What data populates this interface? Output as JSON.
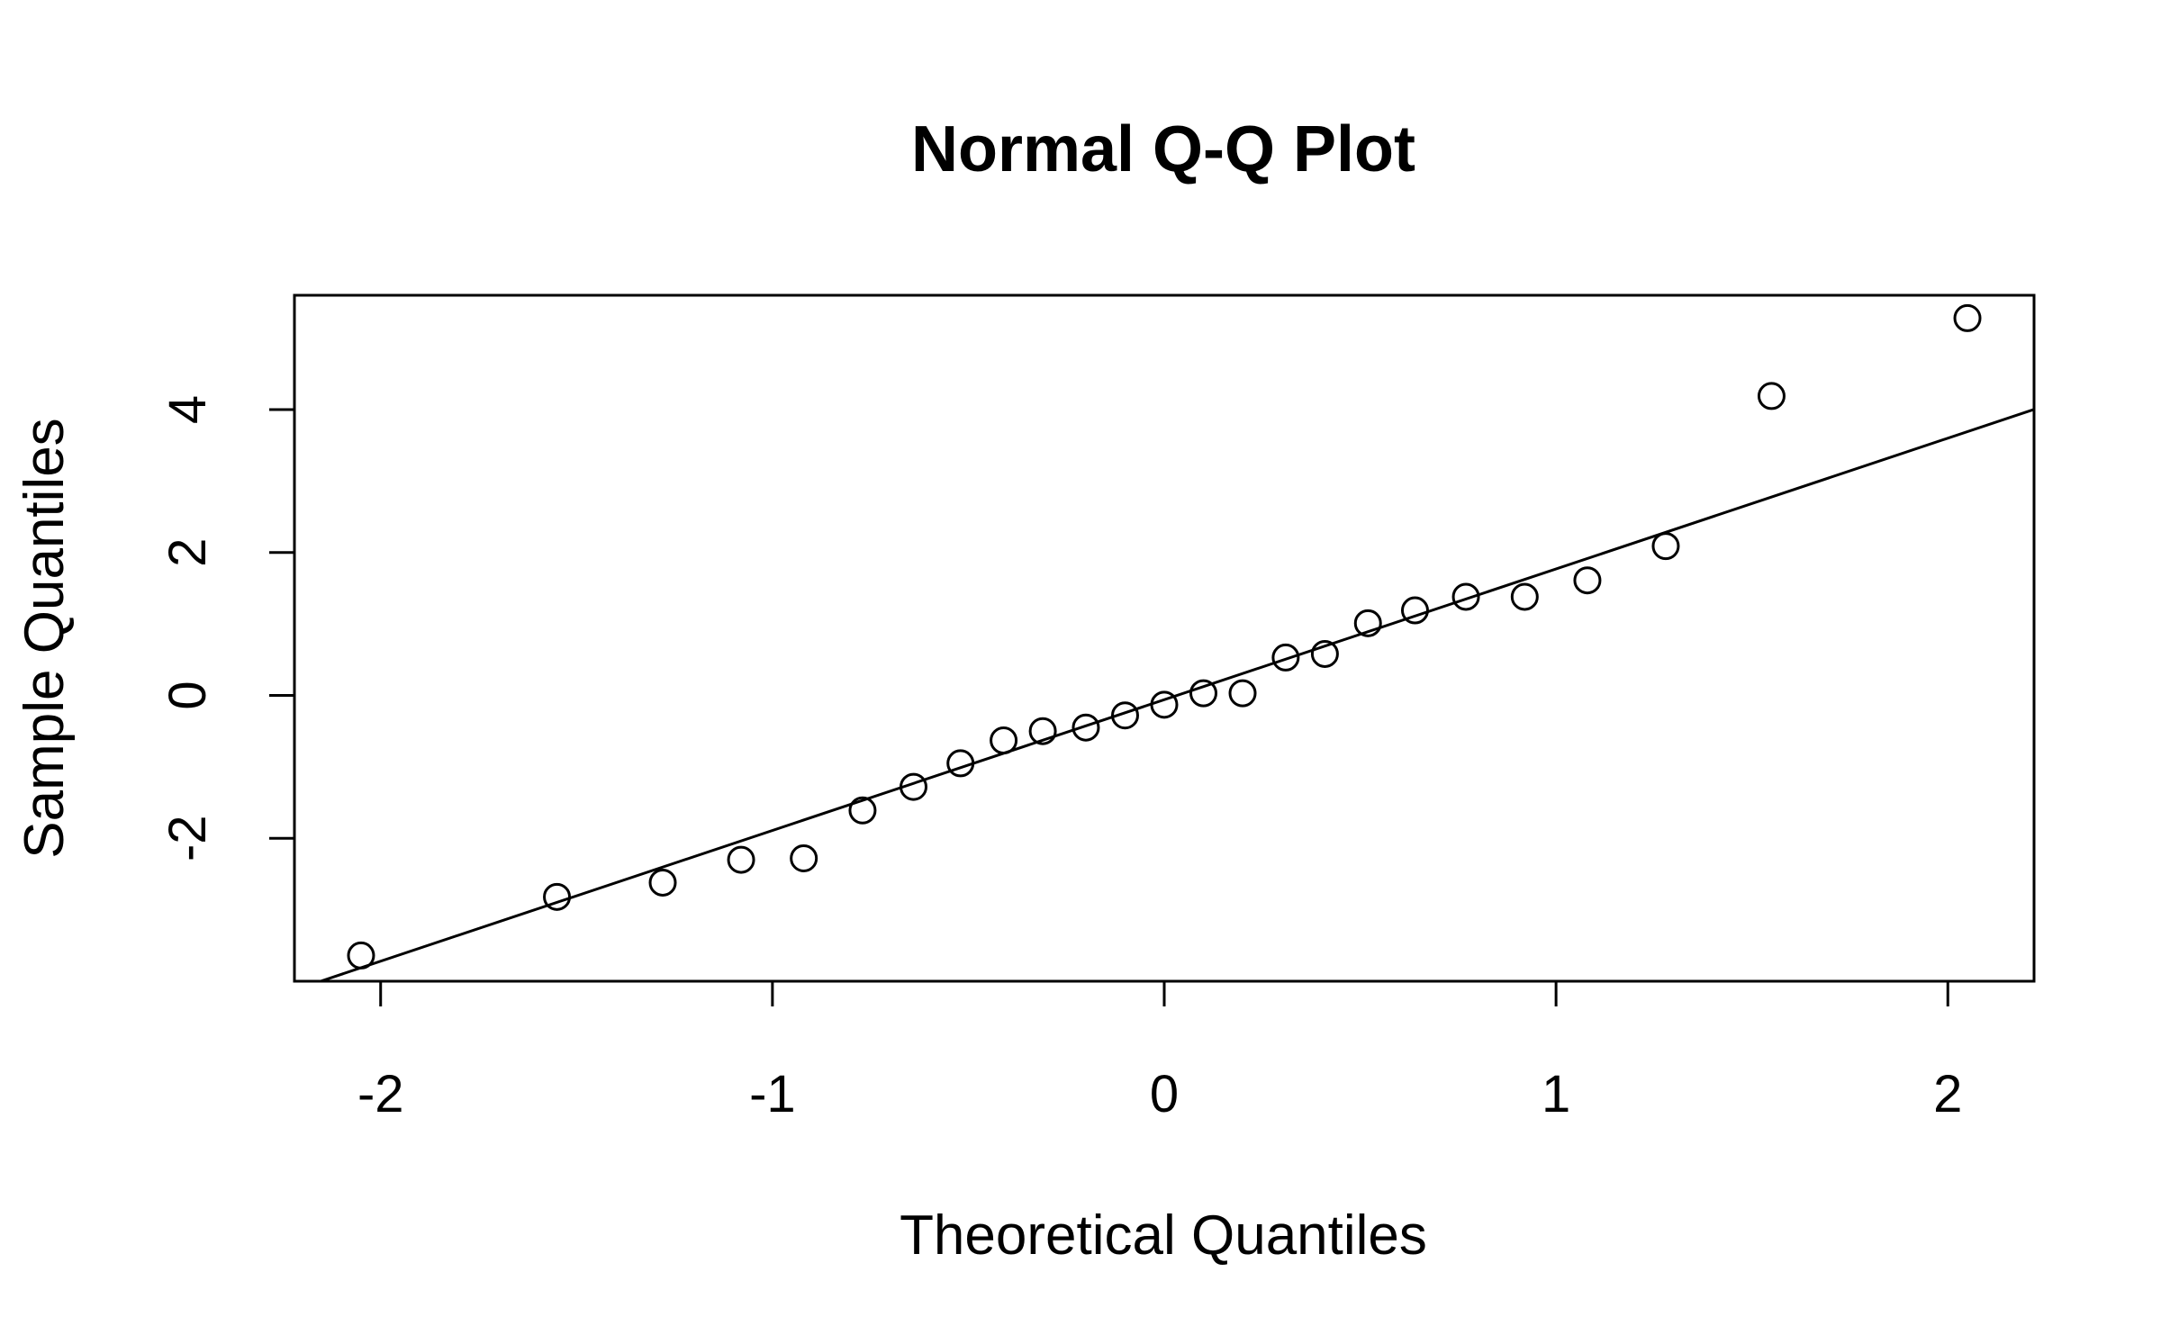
{
  "chart_data": {
    "type": "scatter",
    "title": "Normal Q-Q Plot",
    "xlabel": "Theoretical Quantiles",
    "ylabel": "Sample Quantiles",
    "xlim": [
      -2.22,
      2.22
    ],
    "ylim": [
      -4.0,
      5.6
    ],
    "xticks": [
      -2,
      -1,
      0,
      1,
      2
    ],
    "yticks": [
      -2,
      0,
      2,
      4
    ],
    "grid": false,
    "points": [
      {
        "x": -2.05,
        "y": -3.64
      },
      {
        "x": -1.55,
        "y": -2.82
      },
      {
        "x": -1.28,
        "y": -2.62
      },
      {
        "x": -1.08,
        "y": -2.3
      },
      {
        "x": -0.92,
        "y": -2.28
      },
      {
        "x": -0.77,
        "y": -1.61
      },
      {
        "x": -0.64,
        "y": -1.28
      },
      {
        "x": -0.52,
        "y": -0.95
      },
      {
        "x": -0.41,
        "y": -0.63
      },
      {
        "x": -0.31,
        "y": -0.5
      },
      {
        "x": -0.2,
        "y": -0.45
      },
      {
        "x": -0.1,
        "y": -0.28
      },
      {
        "x": 0.0,
        "y": -0.13
      },
      {
        "x": 0.1,
        "y": 0.03
      },
      {
        "x": 0.2,
        "y": 0.03
      },
      {
        "x": 0.31,
        "y": 0.53
      },
      {
        "x": 0.41,
        "y": 0.58
      },
      {
        "x": 0.52,
        "y": 1.01
      },
      {
        "x": 0.64,
        "y": 1.19
      },
      {
        "x": 0.77,
        "y": 1.38
      },
      {
        "x": 0.92,
        "y": 1.38
      },
      {
        "x": 1.08,
        "y": 1.61
      },
      {
        "x": 1.28,
        "y": 2.09
      },
      {
        "x": 1.55,
        "y": 4.19
      },
      {
        "x": 2.05,
        "y": 5.28
      }
    ],
    "reference_line": {
      "intercept": -0.06,
      "slope": 1.83
    }
  }
}
